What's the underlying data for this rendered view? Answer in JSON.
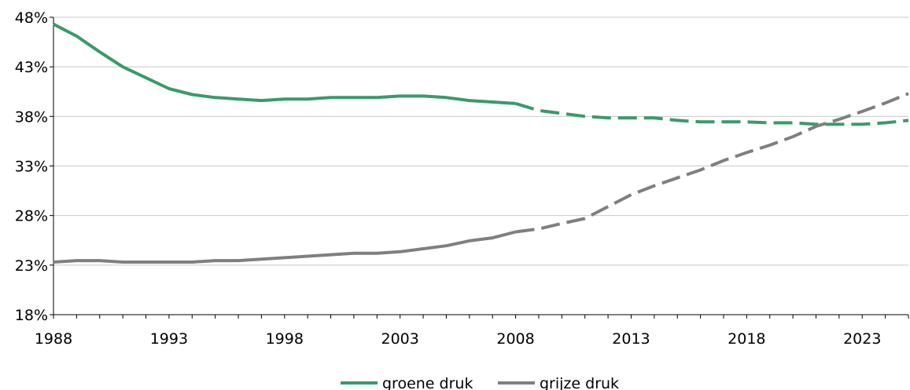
{
  "chart_data": {
    "type": "line",
    "title": "",
    "xlabel": "",
    "ylabel": "",
    "xlim": [
      1988,
      2025
    ],
    "ylim": [
      18,
      48
    ],
    "x_ticks": [
      1988,
      1993,
      1998,
      2003,
      2008,
      2013,
      2018,
      2023
    ],
    "y_ticks": [
      18,
      23,
      28,
      33,
      38,
      43,
      48
    ],
    "y_tick_labels": [
      "18%",
      "23%",
      "28%",
      "33%",
      "38%",
      "43%",
      "48%"
    ],
    "x_tick_labels": [
      "1988",
      "1993",
      "1998",
      "2003",
      "2008",
      "2013",
      "2018",
      "2023"
    ],
    "grid": "horizontal",
    "legend_position": "bottom-center",
    "projection_from": 2008,
    "series": [
      {
        "name": "groene druk",
        "color": "#3a9a6a",
        "points": [
          [
            1988,
            47.3
          ],
          [
            1989,
            46.1
          ],
          [
            1990,
            44.5
          ],
          [
            1991,
            43.0
          ],
          [
            1992,
            41.9
          ],
          [
            1993,
            40.8
          ],
          [
            1994,
            40.2
          ],
          [
            1995,
            39.9
          ],
          [
            1996,
            39.75
          ],
          [
            1997,
            39.6
          ],
          [
            1998,
            39.75
          ],
          [
            1999,
            39.75
          ],
          [
            2000,
            39.9
          ],
          [
            2001,
            39.9
          ],
          [
            2002,
            39.9
          ],
          [
            2003,
            40.05
          ],
          [
            2004,
            40.05
          ],
          [
            2005,
            39.9
          ],
          [
            2006,
            39.6
          ],
          [
            2007,
            39.45
          ],
          [
            2008,
            39.3
          ],
          [
            2009,
            38.6
          ],
          [
            2010,
            38.3
          ],
          [
            2011,
            38.0
          ],
          [
            2012,
            37.85
          ],
          [
            2013,
            37.85
          ],
          [
            2014,
            37.85
          ],
          [
            2015,
            37.6
          ],
          [
            2016,
            37.45
          ],
          [
            2017,
            37.45
          ],
          [
            2018,
            37.45
          ],
          [
            2019,
            37.35
          ],
          [
            2020,
            37.35
          ],
          [
            2021,
            37.2
          ],
          [
            2022,
            37.2
          ],
          [
            2023,
            37.2
          ],
          [
            2024,
            37.35
          ],
          [
            2025,
            37.6
          ]
        ]
      },
      {
        "name": "grijze druk",
        "color": "#7f7f7f",
        "points": [
          [
            1988,
            23.3
          ],
          [
            1989,
            23.45
          ],
          [
            1990,
            23.45
          ],
          [
            1991,
            23.3
          ],
          [
            1992,
            23.3
          ],
          [
            1993,
            23.3
          ],
          [
            1994,
            23.3
          ],
          [
            1995,
            23.45
          ],
          [
            1996,
            23.45
          ],
          [
            1997,
            23.6
          ],
          [
            1998,
            23.75
          ],
          [
            1999,
            23.9
          ],
          [
            2000,
            24.05
          ],
          [
            2001,
            24.2
          ],
          [
            2002,
            24.2
          ],
          [
            2003,
            24.35
          ],
          [
            2004,
            24.65
          ],
          [
            2005,
            24.95
          ],
          [
            2006,
            25.45
          ],
          [
            2007,
            25.75
          ],
          [
            2008,
            26.35
          ],
          [
            2009,
            26.65
          ],
          [
            2010,
            27.2
          ],
          [
            2011,
            27.7
          ],
          [
            2012,
            28.9
          ],
          [
            2013,
            30.1
          ],
          [
            2014,
            31.0
          ],
          [
            2015,
            31.8
          ],
          [
            2016,
            32.6
          ],
          [
            2017,
            33.55
          ],
          [
            2018,
            34.35
          ],
          [
            2019,
            35.1
          ],
          [
            2020,
            35.95
          ],
          [
            2021,
            37.0
          ],
          [
            2022,
            37.7
          ],
          [
            2023,
            38.5
          ],
          [
            2024,
            39.35
          ],
          [
            2025,
            40.3
          ]
        ]
      }
    ]
  }
}
